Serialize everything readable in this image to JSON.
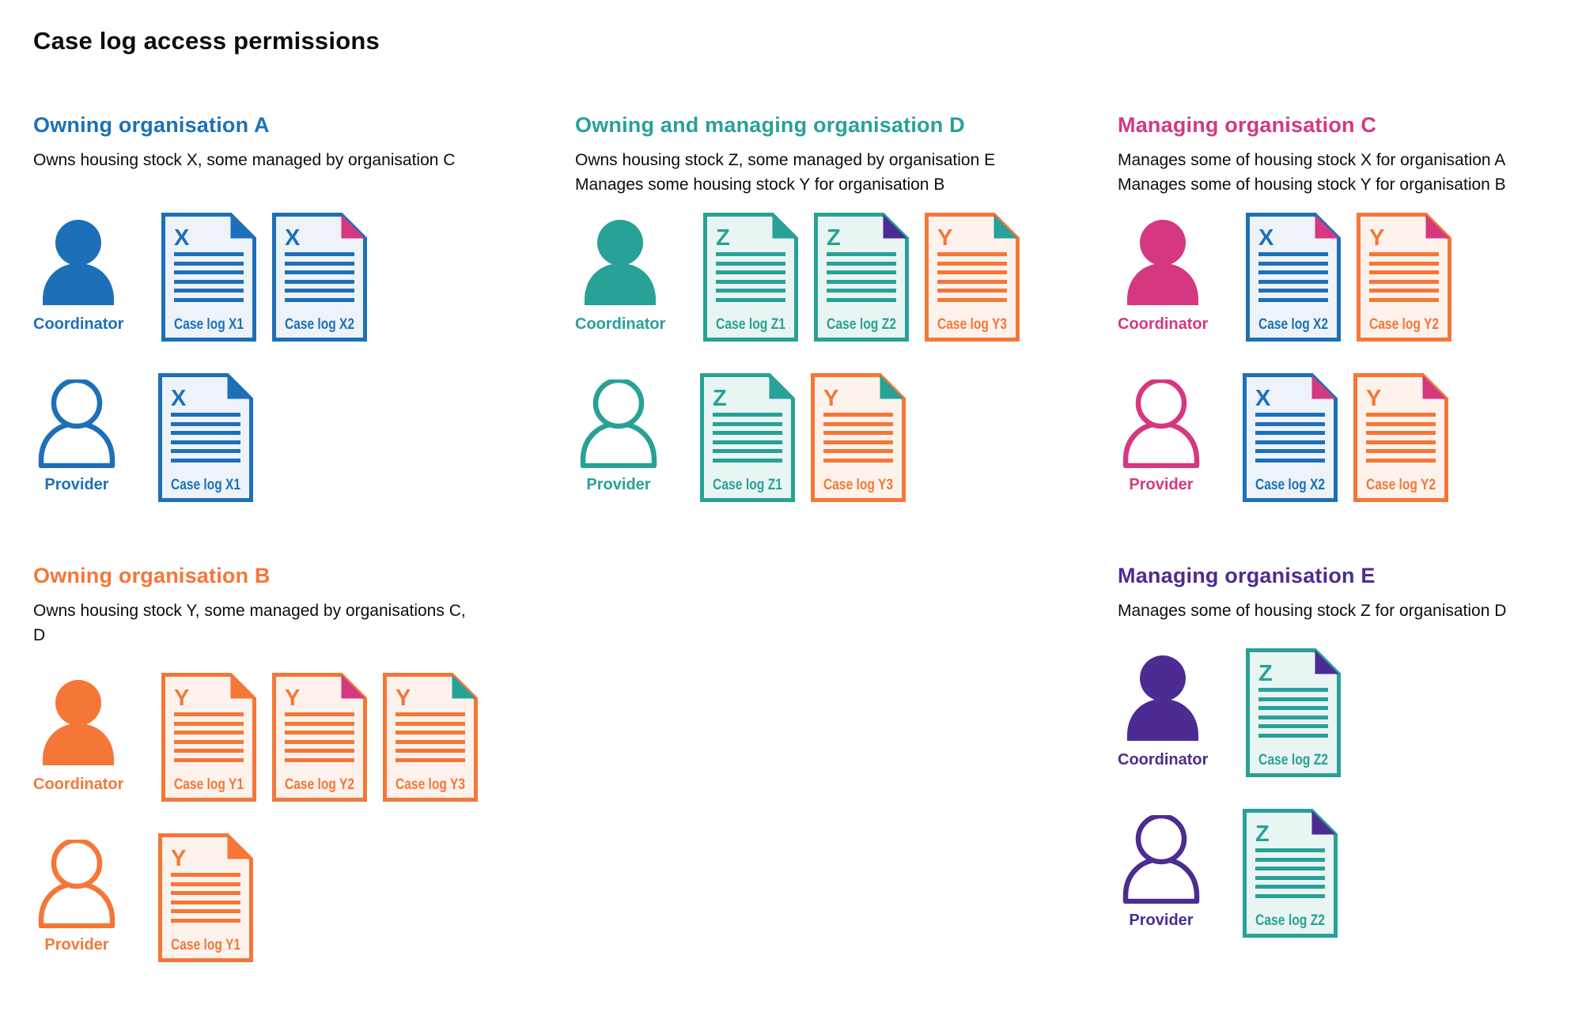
{
  "title": "Case log access permissions",
  "colors": {
    "blue": {
      "main": "#1d70b8",
      "tint": "#edf3f9"
    },
    "teal": {
      "main": "#28a197",
      "tint": "#e9f5f3"
    },
    "orange": {
      "main": "#f47738",
      "tint": "#fdf2ec"
    },
    "pink": {
      "main": "#d53880"
    },
    "purple": {
      "main": "#4c2c92"
    }
  },
  "sections": [
    {
      "heading": "Owning organisation A",
      "color": "blue",
      "description": [
        "Owns housing stock X, some managed by organisation C"
      ],
      "rows": [
        {
          "role": "Coordinator",
          "person": "filled",
          "docs": [
            {
              "letter": "X",
              "label": "Case log X1",
              "doc_color": "blue",
              "corner_color": "blue"
            },
            {
              "letter": "X",
              "label": "Case log X2",
              "doc_color": "blue",
              "corner_color": "pink"
            }
          ]
        },
        {
          "role": "Provider",
          "person": "outline",
          "docs": [
            {
              "letter": "X",
              "label": "Case log X1",
              "doc_color": "blue",
              "corner_color": "blue"
            }
          ]
        }
      ]
    },
    {
      "heading": "Owning and managing organisation D",
      "color": "teal",
      "description": [
        "Owns housing stock Z, some managed by organisation E",
        "Manages some housing stock Y for organisation B"
      ],
      "rows": [
        {
          "role": "Coordinator",
          "person": "filled",
          "docs": [
            {
              "letter": "Z",
              "label": "Case log Z1",
              "doc_color": "teal",
              "corner_color": "teal"
            },
            {
              "letter": "Z",
              "label": "Case log Z2",
              "doc_color": "teal",
              "corner_color": "purple"
            },
            {
              "letter": "Y",
              "label": "Case log Y3",
              "doc_color": "orange",
              "corner_color": "teal"
            }
          ]
        },
        {
          "role": "Provider",
          "person": "outline",
          "docs": [
            {
              "letter": "Z",
              "label": "Case log Z1",
              "doc_color": "teal",
              "corner_color": "teal"
            },
            {
              "letter": "Y",
              "label": "Case log Y3",
              "doc_color": "orange",
              "corner_color": "teal"
            }
          ]
        }
      ]
    },
    {
      "heading": "Managing organisation C",
      "color": "pink",
      "description": [
        "Manages some of housing stock X for organisation A",
        "Manages some of housing stock Y for organisation B"
      ],
      "rows": [
        {
          "role": "Coordinator",
          "person": "filled",
          "docs": [
            {
              "letter": "X",
              "label": "Case log X2",
              "doc_color": "blue",
              "corner_color": "pink"
            },
            {
              "letter": "Y",
              "label": "Case log Y2",
              "doc_color": "orange",
              "corner_color": "pink"
            }
          ]
        },
        {
          "role": "Provider",
          "person": "outline",
          "docs": [
            {
              "letter": "X",
              "label": "Case log X2",
              "doc_color": "blue",
              "corner_color": "pink"
            },
            {
              "letter": "Y",
              "label": "Case log Y2",
              "doc_color": "orange",
              "corner_color": "pink"
            }
          ]
        }
      ]
    },
    {
      "heading": "Owning organisation B",
      "color": "orange",
      "description": [
        "Owns housing stock Y, some managed by organisations C, D"
      ],
      "rows": [
        {
          "role": "Coordinator",
          "person": "filled",
          "docs": [
            {
              "letter": "Y",
              "label": "Case log Y1",
              "doc_color": "orange",
              "corner_color": "orange"
            },
            {
              "letter": "Y",
              "label": "Case log Y2",
              "doc_color": "orange",
              "corner_color": "pink"
            },
            {
              "letter": "Y",
              "label": "Case log Y3",
              "doc_color": "orange",
              "corner_color": "teal"
            }
          ]
        },
        {
          "role": "Provider",
          "person": "outline",
          "docs": [
            {
              "letter": "Y",
              "label": "Case log Y1",
              "doc_color": "orange",
              "corner_color": "orange"
            }
          ]
        }
      ]
    },
    {
      "heading": "Managing organisation E",
      "color": "purple",
      "description": [
        "Manages some of housing stock Z for organisation D"
      ],
      "rows": [
        {
          "role": "Coordinator",
          "person": "filled",
          "docs": [
            {
              "letter": "Z",
              "label": "Case log Z2",
              "doc_color": "teal",
              "corner_color": "purple"
            }
          ]
        },
        {
          "role": "Provider",
          "person": "outline",
          "docs": [
            {
              "letter": "Z",
              "label": "Case log Z2",
              "doc_color": "teal",
              "corner_color": "purple"
            }
          ]
        }
      ]
    }
  ]
}
